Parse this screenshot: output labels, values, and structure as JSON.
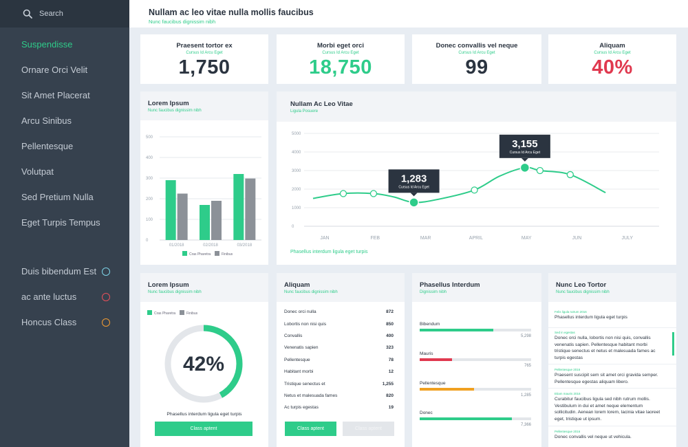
{
  "search": {
    "placeholder": "Search"
  },
  "sidebar": {
    "items": [
      {
        "label": "Suspendisse"
      },
      {
        "label": "Ornare Orci Velit"
      },
      {
        "label": "Sit Amet Placerat"
      },
      {
        "label": "Arcu Sinibus"
      },
      {
        "label": "Pellentesque"
      },
      {
        "label": "Volutpat"
      },
      {
        "label": "Sed Pretium Nulla"
      },
      {
        "label": "Eget Turpis Tempus"
      }
    ],
    "status_items": [
      {
        "label": "Duis bibendum Est",
        "color": "#7ed4e8"
      },
      {
        "label": "ac ante luctus",
        "color": "#e8505b"
      },
      {
        "label": "Honcus Class",
        "color": "#f39c33"
      }
    ]
  },
  "header": {
    "title": "Nullam ac leo vitae nulla mollis faucibus",
    "subtitle": "Nunc faucibus dignissim nibh"
  },
  "stats": [
    {
      "title": "Praesent tortor ex",
      "subtitle": "Cursus Id Arcu Eget",
      "value": "1,750",
      "color": "#2b3440"
    },
    {
      "title": "Morbi eget orci",
      "subtitle": "Cursus Id Arcu Eget",
      "value": "18,750",
      "color": "#2ecc8a"
    },
    {
      "title": "Donec convallis vel neque",
      "subtitle": "Cursus Id Arcu Eget",
      "value": "99",
      "color": "#2b3440"
    },
    {
      "title": "Aliquam",
      "subtitle": "Cursus Id Arcu Eget",
      "value": "40%",
      "color": "#e0394f"
    }
  ],
  "bar_panel": {
    "title": "Lorem Ipsum",
    "subtitle": "Nunc faucibus dignissim nibh"
  },
  "line_panel": {
    "title": "Nullam Ac Leo Vitae",
    "subtitle": "Ligula Posuere",
    "footer": "Phasellus interdum ligula eget turpis"
  },
  "chart_data": [
    {
      "type": "bar",
      "categories": [
        "01/2018",
        "02/2018",
        "03/2018"
      ],
      "series": [
        {
          "name": "Cras Pharetra",
          "values": [
            290,
            170,
            320
          ],
          "color": "#2ecc8a"
        },
        {
          "name": "Finibus",
          "values": [
            225,
            190,
            298
          ],
          "color": "#8c9198"
        }
      ],
      "ylim": [
        0,
        500
      ],
      "yticks": [
        "0",
        "100",
        "200",
        "300",
        "400",
        "500"
      ],
      "legend": "bottom"
    },
    {
      "type": "line",
      "categories": [
        "JAN",
        "FEB",
        "MAR",
        "APRIL",
        "MAY",
        "JUN",
        "JULY"
      ],
      "series": [
        {
          "name": "",
          "x": [
            0.8,
            1.4,
            2.0,
            2.4,
            2.8,
            3.3,
            4.0,
            4.5,
            5.0,
            5.3,
            5.9,
            6.6
          ],
          "values": [
            1500,
            1760,
            1760,
            1580,
            1283,
            1460,
            1950,
            2700,
            3155,
            3000,
            2780,
            1810
          ],
          "color": "#2ecc8a"
        }
      ],
      "markers": [
        1,
        2,
        4,
        6,
        8,
        9,
        10
      ],
      "highlights": [
        {
          "point": 4,
          "value": "1,283",
          "label": "Cursus Id Arcu Eget"
        },
        {
          "point": 8,
          "value": "3,155",
          "label": "Cursus Id Arcu Eget"
        }
      ],
      "ylim": [
        0,
        5000
      ],
      "yticks": [
        "0",
        "1000",
        "2000",
        "3000",
        "4000",
        "5000"
      ]
    }
  ],
  "donut_panel": {
    "title": "Lorem Ipsum",
    "subtitle": "Nunc faucibus dignissim nibh",
    "legend": [
      "Cras Pharetra",
      "Finibus"
    ],
    "percent": 42,
    "percent_label": "42%",
    "caption": "Phasellus interdum ligula eget turpis",
    "button": "Class aptent"
  },
  "list_panel": {
    "title": "Aliquam",
    "subtitle": "Nunc faucibus dignissim nibh",
    "rows": [
      {
        "label": "Donec orci nulla",
        "value": "872"
      },
      {
        "label": "Lobortis non nisi quis",
        "value": "850"
      },
      {
        "label": "Convallis",
        "value": "400"
      },
      {
        "label": "Venenatis sapien",
        "value": "323"
      },
      {
        "label": "Pellentesque",
        "value": "78"
      },
      {
        "label": "Habitant morbi",
        "value": "12"
      },
      {
        "label": "Tristique senectus et",
        "value": "1,255"
      },
      {
        "label": "Netus et malesuada fames",
        "value": "820"
      },
      {
        "label": "Ac turpis egestas",
        "value": "19"
      }
    ],
    "button_primary": "Class aptent",
    "button_secondary": "Class aptent"
  },
  "progress_panel": {
    "title": "Phasellus Interdum",
    "subtitle": "Dignissim nibh",
    "items": [
      {
        "label": "Bibendum",
        "value": "5,298",
        "fraction": 0.66,
        "color": "#2ecc8a"
      },
      {
        "label": "Mauris",
        "value": "765",
        "fraction": 0.29,
        "color": "#e0394f"
      },
      {
        "label": "Pellentesque",
        "value": "1,285",
        "fraction": 0.49,
        "color": "#f0a020"
      },
      {
        "label": "Donec",
        "value": "7,366",
        "fraction": 0.83,
        "color": "#2ecc8a"
      }
    ]
  },
  "feed_panel": {
    "title": "Nunc Leo Tortor",
    "subtitle": "Nunc faucibus dignissim nibh",
    "items": [
      {
        "meta": "Felis ligula rutrum 2016",
        "text": "Phasellus interdum ligula eget turpis"
      },
      {
        "meta": "Sed in egestas",
        "text": "Donec orci nulla, lobortis non nisi quis, convallis venenatis sapien. Pellentesque habitant morbi tristique senectus et netus et malesuada fames ac turpis egestas"
      },
      {
        "meta": "Pellentesque 2016",
        "text": "Praesent suscipit sem sit amet orci gravida semper. Pellentesque egestas aliquam libero."
      },
      {
        "meta": "Etiam mauris 2016",
        "text": "Curabitur faucibus ligula sed nibh rutrum mollis. Vestibulum in dui et amet neque elementum sollicitudin. Aenean lorem lorem, lacinia vitae laoreet eget, tristique ut ipsum."
      },
      {
        "meta": "Pellentesque 2016",
        "text": "Donec convallis vel neque ut vehicula."
      }
    ]
  }
}
